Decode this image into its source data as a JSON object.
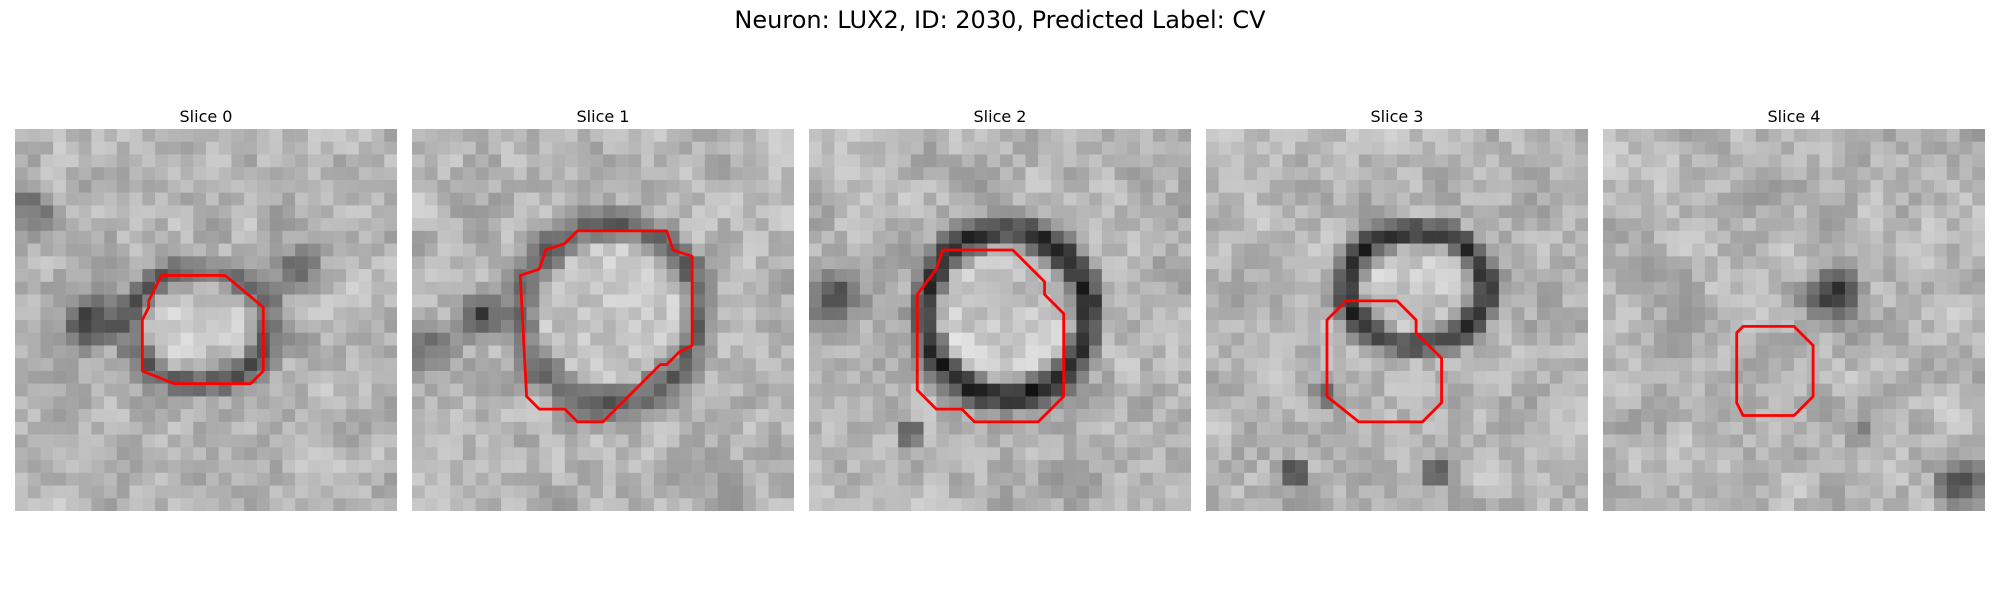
{
  "figure": {
    "title": "Neuron: LUX2, ID: 2030, Predicted Label: CV"
  },
  "outline_color": "#ff0000",
  "panels": [
    {
      "label": "Slice 0"
    },
    {
      "label": "Slice 1"
    },
    {
      "label": "Slice 2"
    },
    {
      "label": "Slice 3"
    },
    {
      "label": "Slice 4"
    }
  ]
}
